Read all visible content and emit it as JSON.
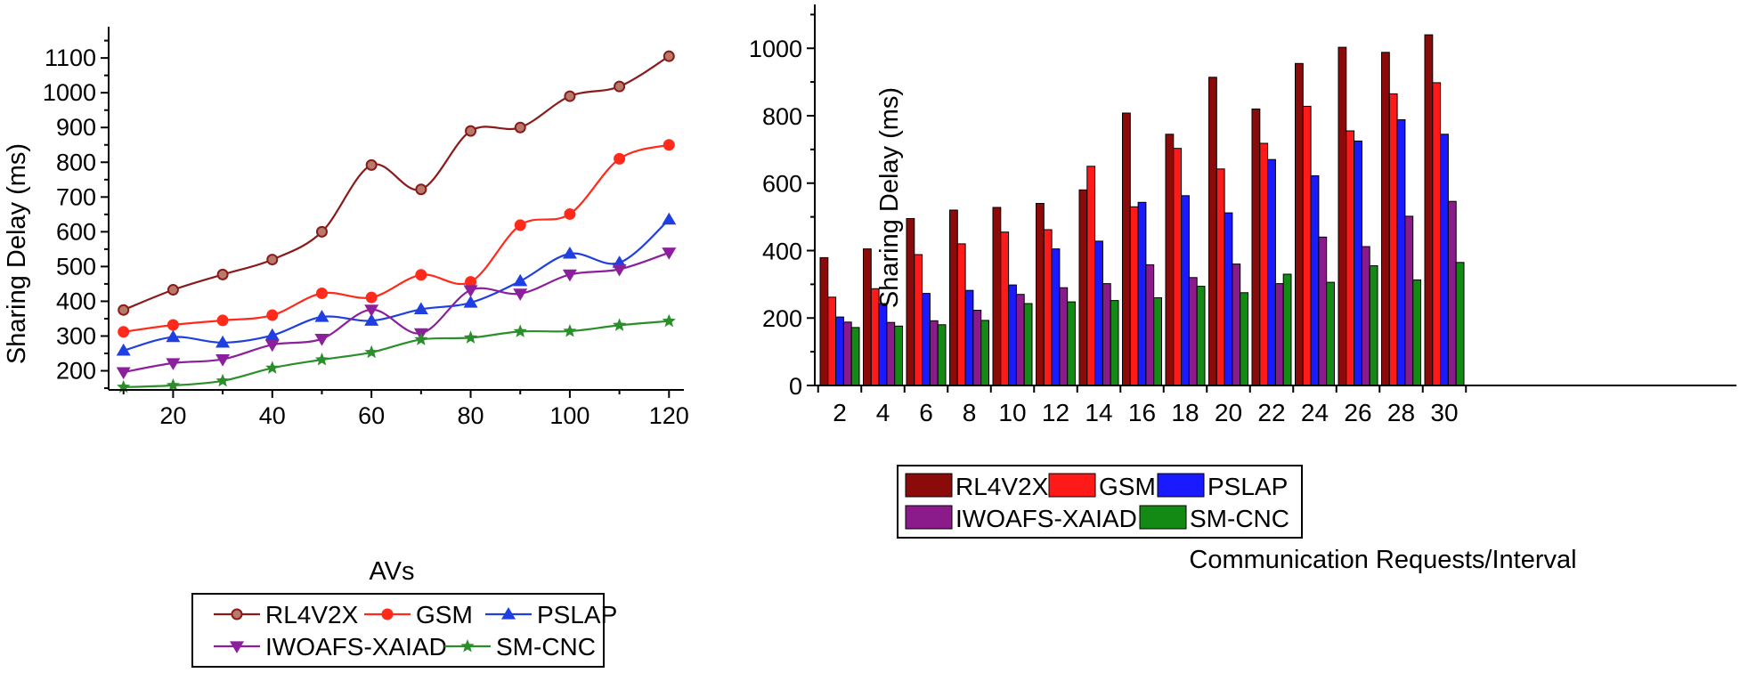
{
  "chart_data": [
    {
      "type": "line",
      "ylabel": "Sharing Delay (ms)",
      "xlabel": "AVs",
      "x": [
        10,
        20,
        30,
        40,
        50,
        60,
        70,
        80,
        90,
        100,
        110,
        120
      ],
      "xlim": [
        7,
        123
      ],
      "ylim": [
        145,
        1190
      ],
      "xticks": [
        20,
        40,
        60,
        80,
        100,
        120
      ],
      "xtick_labels": [
        "20",
        "40",
        "60",
        "80",
        "100",
        "120"
      ],
      "yticks": [
        200,
        300,
        400,
        500,
        600,
        700,
        800,
        900,
        1000,
        1100
      ],
      "ytick_labels": [
        "200",
        "300",
        "400",
        "500",
        "600",
        "700",
        "800",
        "900",
        "1000",
        "1100"
      ],
      "series": [
        {
          "name": "RL4V2X",
          "color": "#8b1a1a",
          "marker": "circle-open",
          "values": [
            375,
            433,
            477,
            520,
            600,
            792,
            722,
            890,
            900,
            990,
            1018,
            1105
          ]
        },
        {
          "name": "GSM",
          "color": "#ff2a1a",
          "marker": "circle",
          "values": [
            312,
            332,
            345,
            360,
            423,
            411,
            476,
            456,
            619,
            651,
            810,
            850
          ]
        },
        {
          "name": "PSLAP",
          "color": "#1f3fe0",
          "marker": "triangle-up",
          "values": [
            258,
            297,
            281,
            302,
            355,
            344,
            377,
            396,
            458,
            537,
            511,
            635
          ]
        },
        {
          "name": "IWOAFS-XAIAD",
          "color": "#8b1f9c",
          "marker": "triangle-down",
          "values": [
            196,
            222,
            233,
            275,
            292,
            376,
            308,
            432,
            422,
            477,
            492,
            540
          ]
        },
        {
          "name": "SM-CNC",
          "color": "#2a8f2a",
          "marker": "star",
          "values": [
            153,
            158,
            171,
            208,
            232,
            253,
            290,
            295,
            313,
            314,
            331,
            343
          ]
        }
      ],
      "legend": {
        "position": "bottom",
        "entries": [
          "RL4V2X",
          "GSM",
          "PSLAP",
          "IWOAFS-XAIAD",
          "SM-CNC"
        ]
      }
    },
    {
      "type": "bar",
      "ylabel": "Sharing Delay (ms)",
      "xlabel": "Communication Requests/Interval",
      "categories": [
        "2",
        "4",
        "6",
        "8",
        "10",
        "12",
        "14",
        "16",
        "18",
        "20",
        "22",
        "24",
        "26",
        "28",
        "30"
      ],
      "ylim": [
        0,
        1130
      ],
      "yticks": [
        0,
        200,
        400,
        600,
        800,
        1000
      ],
      "ytick_labels": [
        "0",
        "200",
        "400",
        "600",
        "800",
        "1000"
      ],
      "series": [
        {
          "name": "RL4V2X",
          "color": "#8b0a0a",
          "values": [
            379,
            405,
            495,
            520,
            528,
            540,
            580,
            808,
            745,
            914,
            820,
            955,
            1003,
            988,
            1040
          ]
        },
        {
          "name": "GSM",
          "color": "#ff1a1a",
          "values": [
            262,
            287,
            388,
            420,
            455,
            462,
            650,
            530,
            703,
            642,
            718,
            828,
            755,
            865,
            898
          ]
        },
        {
          "name": "PSLAP",
          "color": "#1a1aff",
          "values": [
            203,
            243,
            273,
            282,
            298,
            405,
            428,
            543,
            563,
            512,
            670,
            622,
            725,
            788,
            745
          ]
        },
        {
          "name": "IWOAFS-XAIAD",
          "color": "#8b1a8b",
          "values": [
            188,
            187,
            192,
            223,
            270,
            290,
            302,
            358,
            320,
            360,
            302,
            440,
            412,
            502,
            546
          ]
        },
        {
          "name": "SM-CNC",
          "color": "#138a13",
          "values": [
            172,
            176,
            180,
            193,
            243,
            248,
            252,
            260,
            294,
            275,
            330,
            306,
            355,
            313,
            365
          ]
        }
      ],
      "legend": {
        "position": "bottom",
        "entries": [
          "RL4V2X",
          "GSM",
          "PSLAP",
          "IWOAFS-XAIAD",
          "SM-CNC"
        ]
      }
    }
  ]
}
